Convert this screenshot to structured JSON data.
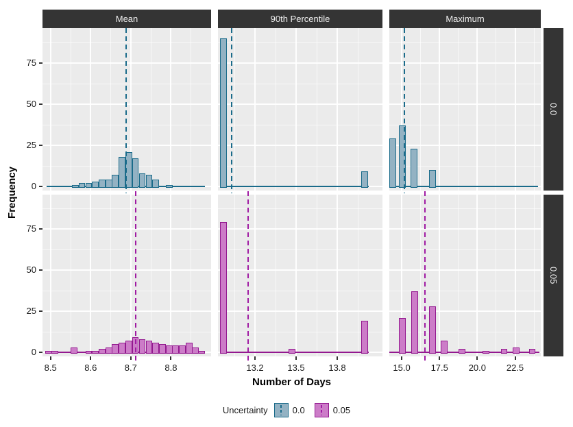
{
  "chart_data": {
    "type": "bar",
    "subtype": "faceted-histograms",
    "title": "",
    "xlabel": "Number of Days",
    "ylabel": "Frequency",
    "ylim": [
      0,
      94
    ],
    "yticks": [
      0,
      25,
      50,
      75
    ],
    "ytick_labels": [
      "0",
      "25",
      "50",
      "75"
    ],
    "grid": "on",
    "legend": {
      "title": "Uncertainty",
      "position": "bottom",
      "entries": [
        {
          "label": "0.0",
          "series": "0.0"
        },
        {
          "label": "0.05",
          "series": "0.05"
        }
      ]
    },
    "facet_cols": [
      {
        "label": "Mean",
        "xlim": [
          8.48,
          8.9
        ],
        "xtick_values": [
          8.5,
          8.6,
          8.7,
          8.8
        ],
        "xtick_labels": [
          "8.5",
          "8.6",
          "8.7",
          "8.8"
        ],
        "minor_step": 0.05
      },
      {
        "label": "90th Percentile",
        "xlim": [
          12.93,
          14.13
        ],
        "xtick_values": [
          13.2,
          13.5,
          13.8
        ],
        "xtick_labels": [
          "13.2",
          "13.5",
          "13.8"
        ],
        "minor_step": 0.15
      },
      {
        "label": "Maximum",
        "xlim": [
          14.18,
          24.2
        ],
        "xtick_values": [
          15.0,
          17.5,
          20.0,
          22.5
        ],
        "xtick_labels": [
          "15.0",
          "17.5",
          "20.0",
          "22.5"
        ],
        "minor_step": 1.25
      }
    ],
    "facet_rows": [
      {
        "label": "0.0"
      },
      {
        "label": "0.05"
      }
    ],
    "series_colors": {
      "0.0": {
        "fill": "#93B2C3",
        "stroke": "#1A6B8A",
        "vline": "#1A6B8A"
      },
      "0.05": {
        "fill": "#CC7CC8",
        "stroke": "#93188F",
        "vline": "#A01BA3"
      }
    },
    "panels": [
      {
        "row": 0,
        "col": 0,
        "series": "0.0",
        "binwidth": 0.0167,
        "vline": 8.688,
        "baseline": [
          8.49,
          8.885
        ],
        "bars": [
          [
            8.553,
            1
          ],
          [
            8.57,
            2
          ],
          [
            8.587,
            2
          ],
          [
            8.603,
            3
          ],
          [
            8.62,
            4
          ],
          [
            8.637,
            4
          ],
          [
            8.653,
            7
          ],
          [
            8.67,
            18
          ],
          [
            8.687,
            21
          ],
          [
            8.703,
            17
          ],
          [
            8.72,
            8
          ],
          [
            8.737,
            7
          ],
          [
            8.753,
            4
          ],
          [
            8.787,
            1
          ]
        ]
      },
      {
        "row": 0,
        "col": 1,
        "series": "0.0",
        "binwidth": 0.05,
        "vline": 13.03,
        "baseline": [
          12.945,
          14.03
        ],
        "bars": [
          [
            12.945,
            90
          ],
          [
            13.975,
            9
          ]
        ]
      },
      {
        "row": 0,
        "col": 2,
        "series": "0.0",
        "binwidth": 0.45,
        "vline": 15.18,
        "baseline": [
          14.2,
          24.0
        ],
        "bars": [
          [
            14.19,
            29
          ],
          [
            14.82,
            37
          ],
          [
            15.59,
            23
          ],
          [
            16.82,
            10
          ]
        ]
      },
      {
        "row": 1,
        "col": 0,
        "series": "0.05",
        "binwidth": 0.0167,
        "vline": 8.712,
        "baseline": [
          8.487,
          8.885
        ],
        "bars": [
          [
            8.487,
            1
          ],
          [
            8.503,
            1
          ],
          [
            8.55,
            3
          ],
          [
            8.587,
            1
          ],
          [
            8.603,
            1
          ],
          [
            8.62,
            2
          ],
          [
            8.637,
            3
          ],
          [
            8.653,
            5
          ],
          [
            8.67,
            6
          ],
          [
            8.687,
            7
          ],
          [
            8.703,
            9
          ],
          [
            8.72,
            8
          ],
          [
            8.737,
            7
          ],
          [
            8.753,
            6
          ],
          [
            8.77,
            5
          ],
          [
            8.787,
            4
          ],
          [
            8.803,
            4
          ],
          [
            8.82,
            4
          ],
          [
            8.837,
            6
          ],
          [
            8.853,
            3
          ],
          [
            8.868,
            1
          ]
        ]
      },
      {
        "row": 1,
        "col": 1,
        "series": "0.05",
        "binwidth": 0.05,
        "vline": 13.15,
        "baseline": [
          12.945,
          14.03
        ],
        "bars": [
          [
            12.945,
            79
          ],
          [
            13.445,
            2
          ],
          [
            13.975,
            19
          ]
        ]
      },
      {
        "row": 1,
        "col": 2,
        "series": "0.05",
        "binwidth": 0.45,
        "vline": 16.55,
        "baseline": [
          14.2,
          24.1
        ],
        "bars": [
          [
            14.82,
            21
          ],
          [
            15.64,
            37
          ],
          [
            16.82,
            28
          ],
          [
            17.59,
            7
          ],
          [
            18.77,
            2
          ],
          [
            20.36,
            1
          ],
          [
            21.55,
            2
          ],
          [
            22.36,
            3
          ],
          [
            23.41,
            2
          ]
        ]
      }
    ]
  }
}
